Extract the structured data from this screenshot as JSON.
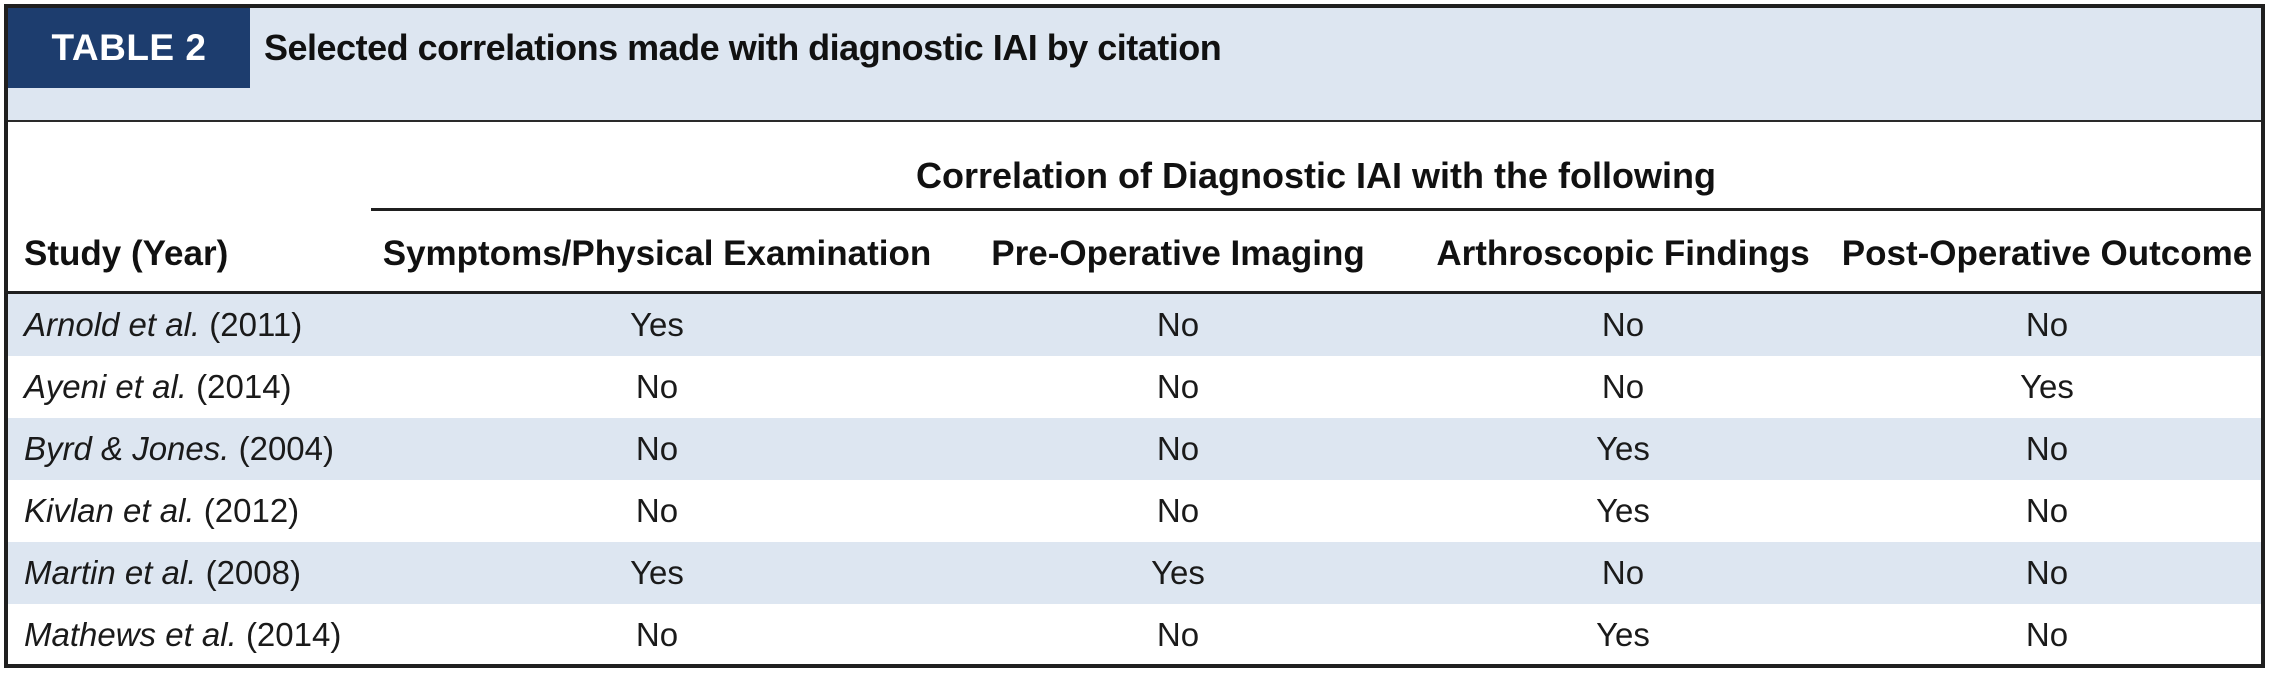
{
  "table": {
    "tag": "TABLE 2",
    "title": "Selected correlations made with diagnostic IAI by citation",
    "group_header": "Correlation of Diagnostic IAI with the following",
    "columns": {
      "study": "Study (Year)",
      "c1": "Symptoms/Physical Examination",
      "c2": "Pre-Operative Imaging",
      "c3": "Arthroscopic Findings",
      "c4": "Post-Operative Outcome"
    },
    "rows": [
      {
        "author": "Arnold et al.",
        "year": "(2011)",
        "c1": "Yes",
        "c2": "No",
        "c3": "No",
        "c4": "No"
      },
      {
        "author": "Ayeni et al.",
        "year": "(2014)",
        "c1": "No",
        "c2": "No",
        "c3": "No",
        "c4": "Yes"
      },
      {
        "author": "Byrd & Jones.",
        "year": "(2004)",
        "c1": "No",
        "c2": "No",
        "c3": "Yes",
        "c4": "No"
      },
      {
        "author": "Kivlan et al.",
        "year": "(2012)",
        "c1": "No",
        "c2": "No",
        "c3": "Yes",
        "c4": "No"
      },
      {
        "author": "Martin et al.",
        "year": "(2008)",
        "c1": "Yes",
        "c2": "Yes",
        "c3": "No",
        "c4": "No"
      },
      {
        "author": "Mathews et al.",
        "year": "(2014)",
        "c1": "No",
        "c2": "No",
        "c3": "Yes",
        "c4": "No"
      }
    ]
  },
  "colors": {
    "tag_background": "#1d3d6e",
    "band_background": "#dde6f1"
  }
}
